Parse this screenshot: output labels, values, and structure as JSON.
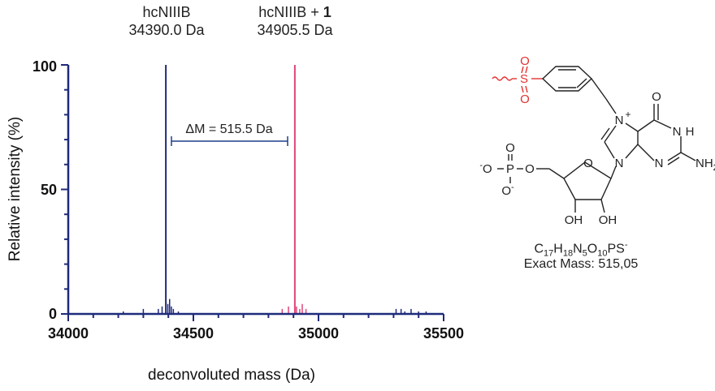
{
  "chart_data": {
    "type": "line",
    "xlabel": "deconvoluted mass (Da)",
    "ylabel": "Relative intensity (%)",
    "xlim": [
      34000,
      35500
    ],
    "ylim": [
      0,
      100
    ],
    "x_ticks": [
      "34000",
      "34500",
      "35000",
      "35500"
    ],
    "y_ticks": [
      "0",
      "50",
      "100"
    ],
    "series": [
      {
        "color": "#1f2a7a",
        "points": [
          [
            34220,
            1
          ],
          [
            34300,
            2
          ],
          [
            34360,
            2
          ],
          [
            34375,
            3
          ],
          [
            34390,
            100
          ],
          [
            34398,
            4
          ],
          [
            34405,
            6
          ],
          [
            34412,
            3
          ],
          [
            34420,
            2
          ],
          [
            34440,
            1
          ],
          [
            35310,
            2
          ],
          [
            35330,
            2
          ],
          [
            35345,
            1
          ],
          [
            35370,
            2
          ],
          [
            35400,
            1
          ],
          [
            35430,
            1
          ]
        ]
      },
      {
        "color": "#e0457b",
        "points": [
          [
            34855,
            2
          ],
          [
            34880,
            3
          ],
          [
            34905.5,
            100
          ],
          [
            34912,
            3
          ],
          [
            34925,
            2
          ],
          [
            34935,
            4
          ],
          [
            34950,
            2
          ]
        ]
      }
    ],
    "annotations": {
      "peak1": {
        "name": "hcNIIIB",
        "mass": "34390.0 Da"
      },
      "peak2": {
        "name": "hcNIIIB + ",
        "name_bold": "1",
        "mass": "34905.5 Da"
      },
      "delta": "ΔM = 515.5 Da"
    }
  },
  "molecule": {
    "atoms": {
      "o_sulfonyl_top": "O",
      "s": "S",
      "o_sulfonyl_bottom": "O",
      "n7": "N",
      "plus": "+",
      "o_carbonyl": "O",
      "n1": "N",
      "h1": "H",
      "n3": "N",
      "n9": "N",
      "nh2": "NH",
      "nh2_sub": "2",
      "o_ring": "O",
      "oh_left": "OH",
      "oh_right": "OH",
      "p": "P",
      "o_p_top": "O",
      "o_p_left": "O",
      "o_p_left_charge": "-",
      "o_p_right": "O",
      "o_p_bottom": "O",
      "o_p_bottom_charge": "-"
    },
    "formula": {
      "C": "C",
      "c_n": "17",
      "H": "H",
      "h_n": "18",
      "N": "N",
      "n_n": "5",
      "O": "O",
      "o_n": "10",
      "rest": "PS",
      "charge": "-"
    },
    "exact_mass": "Exact Mass: 515,05"
  }
}
